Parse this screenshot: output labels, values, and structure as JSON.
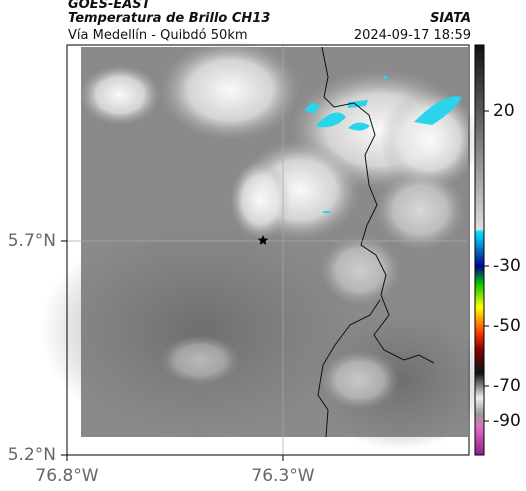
{
  "header": {
    "source": "GOES-EAST",
    "title": "Temperatura de Brillo CH13",
    "subtitle": "Vía Medellín - Quibdó 50km",
    "brand": "SIATA",
    "timestamp": "2024-09-17 18:59"
  },
  "map": {
    "lat_ticks": [
      {
        "value": 5.7,
        "label": "5.7°N"
      },
      {
        "value": 5.2,
        "label": "5.2°N"
      }
    ],
    "lon_ticks": [
      {
        "value": -76.8,
        "label": "76.8°W"
      },
      {
        "value": -76.3,
        "label": "76.3°W"
      }
    ]
  },
  "colorbar": {
    "ticks": [
      20,
      -30,
      -50,
      -70,
      -90
    ]
  }
}
